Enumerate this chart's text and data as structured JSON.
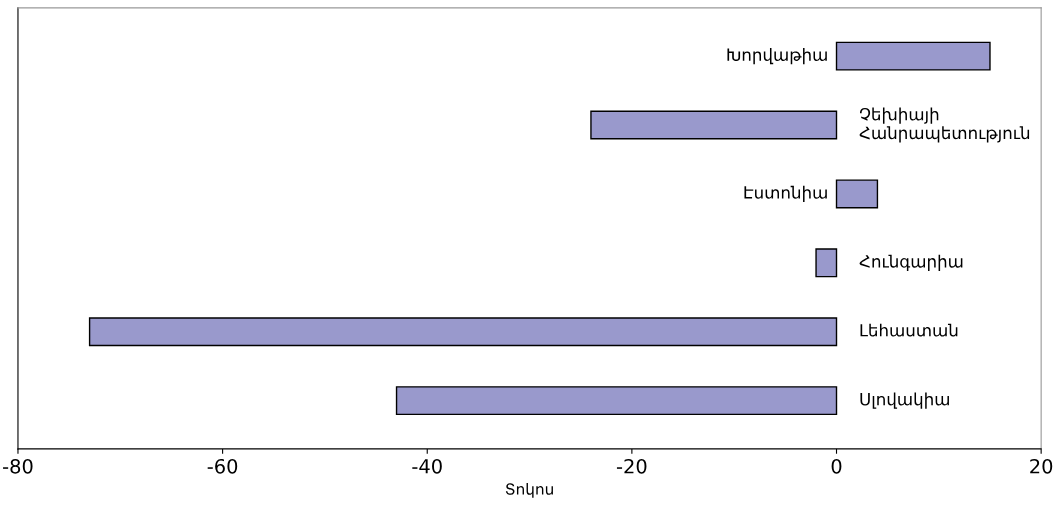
{
  "chart_data": {
    "type": "bar",
    "orientation": "horizontal",
    "categories": [
      "Խորվաթիա",
      "Չեխիայի\nՀանրապետություն",
      "Էստոնիա",
      "Հունգարիա",
      "Լեհաստան",
      "Սլովակիա"
    ],
    "values": [
      15,
      -24,
      4,
      -2,
      -73,
      -43
    ],
    "color": "#9999cc",
    "xlabel": "Տոկոս",
    "xlim": [
      -80,
      20
    ],
    "xticks": [
      -80,
      -60,
      -40,
      -20,
      0,
      20
    ],
    "tick_labels": "x",
    "grid": false
  }
}
